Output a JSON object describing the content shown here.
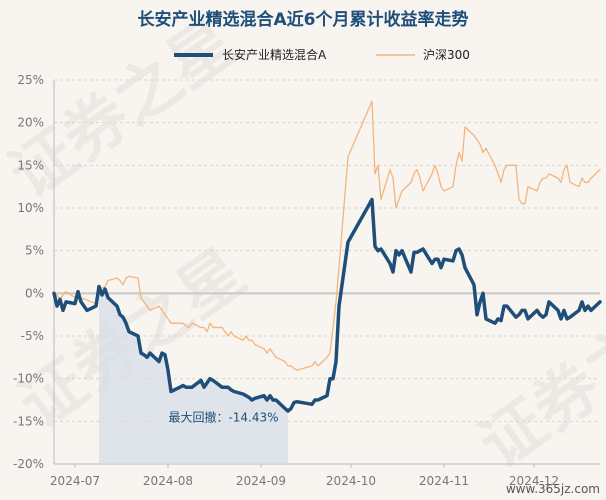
{
  "chart_data": {
    "type": "line",
    "title": "长安产业精选混合A近6个月累计收益率走势",
    "ylim": [
      -20,
      25
    ],
    "yticks": [
      "25%",
      "20%",
      "15%",
      "10%",
      "5%",
      "0%",
      "-5%",
      "-10%",
      "-15%",
      "-20%"
    ],
    "xticks": [
      "2024-07",
      "2024-08",
      "2024-09",
      "2024-10",
      "2024-11",
      "2024-12"
    ],
    "series": [
      {
        "name": "长安产业精选混合A",
        "color": "#1f4e79",
        "x": [
          "2024-06-24",
          "2024-06-25",
          "2024-06-26",
          "2024-06-27",
          "2024-06-28",
          "2024-07-01",
          "2024-07-02",
          "2024-07-03",
          "2024-07-04",
          "2024-07-05",
          "2024-07-08",
          "2024-07-09",
          "2024-07-10",
          "2024-07-11",
          "2024-07-12",
          "2024-07-15",
          "2024-07-16",
          "2024-07-17",
          "2024-07-18",
          "2024-07-19",
          "2024-07-22",
          "2024-07-23",
          "2024-07-24",
          "2024-07-25",
          "2024-07-26",
          "2024-07-29",
          "2024-07-30",
          "2024-07-31",
          "2024-08-01",
          "2024-08-02",
          "2024-08-05",
          "2024-08-06",
          "2024-08-07",
          "2024-08-08",
          "2024-08-09",
          "2024-08-12",
          "2024-08-13",
          "2024-08-14",
          "2024-08-15",
          "2024-08-16",
          "2024-08-19",
          "2024-08-20",
          "2024-08-21",
          "2024-08-22",
          "2024-08-23",
          "2024-08-26",
          "2024-08-27",
          "2024-08-28",
          "2024-08-29",
          "2024-08-30",
          "2024-09-02",
          "2024-09-03",
          "2024-09-04",
          "2024-09-05",
          "2024-09-06",
          "2024-09-09",
          "2024-09-10",
          "2024-09-11",
          "2024-09-12",
          "2024-09-13",
          "2024-09-18",
          "2024-09-19",
          "2024-09-20",
          "2024-09-23",
          "2024-09-24",
          "2024-09-25",
          "2024-09-26",
          "2024-09-27",
          "2024-09-30",
          "2024-10-08",
          "2024-10-09",
          "2024-10-10",
          "2024-10-11",
          "2024-10-14",
          "2024-10-15",
          "2024-10-16",
          "2024-10-17",
          "2024-10-18",
          "2024-10-21",
          "2024-10-22",
          "2024-10-23",
          "2024-10-24",
          "2024-10-25",
          "2024-10-28",
          "2024-10-29",
          "2024-10-30",
          "2024-10-31",
          "2024-11-01",
          "2024-11-04",
          "2024-11-05",
          "2024-11-06",
          "2024-11-07",
          "2024-11-08",
          "2024-11-11",
          "2024-11-12",
          "2024-11-13",
          "2024-11-14",
          "2024-11-15",
          "2024-11-18",
          "2024-11-19",
          "2024-11-20",
          "2024-11-21",
          "2024-11-22",
          "2024-11-25",
          "2024-11-26",
          "2024-11-27",
          "2024-11-28",
          "2024-11-29",
          "2024-12-02",
          "2024-12-03",
          "2024-12-04",
          "2024-12-05",
          "2024-12-06",
          "2024-12-09",
          "2024-12-10",
          "2024-12-11",
          "2024-12-12",
          "2024-12-13",
          "2024-12-16",
          "2024-12-17",
          "2024-12-18",
          "2024-12-19",
          "2024-12-20",
          "2024-12-23"
        ],
        "values": [
          0.0,
          -1.5,
          -0.7,
          -2.0,
          -1.0,
          -1.2,
          0.2,
          -1.0,
          -1.5,
          -2.0,
          -1.5,
          0.8,
          -0.2,
          0.5,
          -0.5,
          -1.5,
          -2.5,
          -2.8,
          -3.5,
          -4.5,
          -5.0,
          -7.0,
          -7.2,
          -7.5,
          -7.0,
          -8.0,
          -7.0,
          -7.2,
          -9.0,
          -11.5,
          -11.0,
          -10.8,
          -11.0,
          -11.0,
          -11.0,
          -10.2,
          -11.0,
          -10.5,
          -10.0,
          -10.2,
          -11.0,
          -11.0,
          -11.0,
          -11.3,
          -11.5,
          -11.8,
          -12.0,
          -12.2,
          -12.5,
          -12.3,
          -12.0,
          -12.5,
          -12.0,
          -12.5,
          -12.5,
          -13.5,
          -13.8,
          -13.5,
          -12.8,
          -12.7,
          -13.0,
          -12.5,
          -12.5,
          -12.0,
          -10.0,
          -10.0,
          -8.0,
          -1.5,
          6.0,
          11.0,
          5.5,
          5.0,
          5.2,
          3.5,
          2.5,
          5.0,
          4.5,
          5.0,
          2.5,
          4.8,
          4.8,
          5.0,
          5.2,
          3.5,
          4.0,
          4.0,
          3.0,
          4.0,
          3.8,
          5.0,
          5.2,
          4.5,
          3.0,
          1.0,
          -2.5,
          -1.0,
          0.0,
          -3.0,
          -3.5,
          -3.0,
          -3.2,
          -1.5,
          -1.5,
          -2.8,
          -2.5,
          -2.0,
          -2.0,
          -3.0,
          -2.0,
          -2.5,
          -2.8,
          -2.5,
          -1.0,
          -2.0,
          -3.0,
          -2.0,
          -3.0,
          -2.8,
          -2.0,
          -1.0,
          -2.0,
          -1.5,
          -2.0,
          -1.0
        ]
      },
      {
        "name": "沪深300",
        "color": "#f3b57a",
        "x": [
          "2024-06-24",
          "2024-06-25",
          "2024-06-26",
          "2024-06-27",
          "2024-06-28",
          "2024-07-01",
          "2024-07-02",
          "2024-07-03",
          "2024-07-04",
          "2024-07-05",
          "2024-07-08",
          "2024-07-09",
          "2024-07-10",
          "2024-07-11",
          "2024-07-12",
          "2024-07-15",
          "2024-07-16",
          "2024-07-17",
          "2024-07-18",
          "2024-07-19",
          "2024-07-22",
          "2024-07-23",
          "2024-07-24",
          "2024-07-25",
          "2024-07-26",
          "2024-07-29",
          "2024-07-30",
          "2024-07-31",
          "2024-08-01",
          "2024-08-02",
          "2024-08-05",
          "2024-08-06",
          "2024-08-07",
          "2024-08-08",
          "2024-08-09",
          "2024-08-12",
          "2024-08-13",
          "2024-08-14",
          "2024-08-15",
          "2024-08-16",
          "2024-08-19",
          "2024-08-20",
          "2024-08-21",
          "2024-08-22",
          "2024-08-23",
          "2024-08-26",
          "2024-08-27",
          "2024-08-28",
          "2024-08-29",
          "2024-08-30",
          "2024-09-02",
          "2024-09-03",
          "2024-09-04",
          "2024-09-05",
          "2024-09-06",
          "2024-09-09",
          "2024-09-10",
          "2024-09-11",
          "2024-09-12",
          "2024-09-13",
          "2024-09-18",
          "2024-09-19",
          "2024-09-20",
          "2024-09-23",
          "2024-09-24",
          "2024-09-25",
          "2024-09-26",
          "2024-09-27",
          "2024-09-30",
          "2024-10-08",
          "2024-10-09",
          "2024-10-10",
          "2024-10-11",
          "2024-10-14",
          "2024-10-15",
          "2024-10-16",
          "2024-10-17",
          "2024-10-18",
          "2024-10-21",
          "2024-10-22",
          "2024-10-23",
          "2024-10-24",
          "2024-10-25",
          "2024-10-28",
          "2024-10-29",
          "2024-10-30",
          "2024-10-31",
          "2024-11-01",
          "2024-11-04",
          "2024-11-05",
          "2024-11-06",
          "2024-11-07",
          "2024-11-08",
          "2024-11-11",
          "2024-11-12",
          "2024-11-13",
          "2024-11-14",
          "2024-11-15",
          "2024-11-18",
          "2024-11-19",
          "2024-11-20",
          "2024-11-21",
          "2024-11-22",
          "2024-11-25",
          "2024-11-26",
          "2024-11-27",
          "2024-11-28",
          "2024-11-29",
          "2024-12-02",
          "2024-12-03",
          "2024-12-04",
          "2024-12-05",
          "2024-12-06",
          "2024-12-09",
          "2024-12-10",
          "2024-12-11",
          "2024-12-12",
          "2024-12-13",
          "2024-12-16",
          "2024-12-17",
          "2024-12-18",
          "2024-12-19",
          "2024-12-20",
          "2024-12-23"
        ],
        "values": [
          0.0,
          -0.2,
          -0.8,
          -0.2,
          0.2,
          -0.5,
          -0.2,
          -0.8,
          -0.6,
          -0.8,
          -1.2,
          0.2,
          0.6,
          0.8,
          1.5,
          1.8,
          1.5,
          1.0,
          1.8,
          2.0,
          1.8,
          -0.5,
          -1.0,
          -1.5,
          -2.0,
          -1.5,
          -2.0,
          -2.5,
          -3.0,
          -3.5,
          -3.5,
          -3.5,
          -3.8,
          -4.0,
          -3.5,
          -4.0,
          -4.0,
          -4.5,
          -3.5,
          -4.0,
          -4.0,
          -4.5,
          -5.0,
          -4.5,
          -5.0,
          -5.5,
          -5.0,
          -5.5,
          -5.5,
          -6.0,
          -6.5,
          -7.0,
          -6.5,
          -7.0,
          -7.5,
          -8.0,
          -8.5,
          -8.5,
          -8.8,
          -9.0,
          -8.5,
          -8.0,
          -8.5,
          -7.5,
          -7.0,
          -4.0,
          -1.0,
          3.0,
          16.0,
          22.5,
          14.0,
          15.0,
          11.0,
          14.5,
          13.5,
          10.0,
          11.0,
          12.0,
          13.0,
          14.0,
          14.5,
          13.5,
          12.0,
          14.0,
          15.0,
          14.0,
          12.5,
          12.0,
          12.5,
          15.0,
          16.5,
          15.5,
          19.5,
          18.5,
          18.0,
          17.5,
          16.5,
          17.0,
          15.0,
          14.0,
          13.0,
          14.5,
          15.0,
          15.0,
          11.0,
          10.5,
          10.5,
          12.5,
          12.0,
          13.0,
          13.5,
          13.5,
          14.0,
          13.5,
          13.0,
          14.5,
          15.0,
          13.0,
          12.5,
          13.5,
          13.0,
          13.0,
          13.5,
          14.5
        ]
      }
    ],
    "annotation": "最大回撤：-14.43%",
    "legend_position": "top-center",
    "grid": true
  },
  "watermark": "证券之星",
  "site_watermark": "www.365jz.com"
}
